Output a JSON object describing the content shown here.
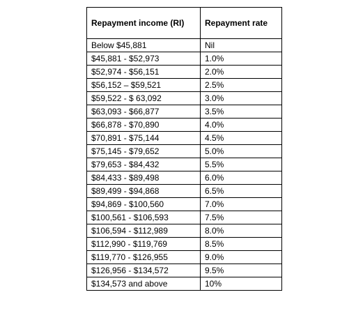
{
  "table": {
    "headers": [
      "Repayment income (RI)",
      "Repayment rate"
    ],
    "rows": [
      [
        "Below $45,881",
        "Nil"
      ],
      [
        "$45,881 - $52,973",
        "1.0%"
      ],
      [
        "$52,974 - $56,151",
        "2.0%"
      ],
      [
        "$56,152 – $59,521",
        "2.5%"
      ],
      [
        "$59,522 - $ 63,092",
        "3.0%"
      ],
      [
        "$63,093 - $66,877",
        "3.5%"
      ],
      [
        "$66,878 - $70,890",
        "4.0%"
      ],
      [
        "$70,891 - $75,144",
        "4.5%"
      ],
      [
        "$75,145 - $79,652",
        "5.0%"
      ],
      [
        "$79,653 - $84,432",
        "5.5%"
      ],
      [
        "$84,433 - $89,498",
        "6.0%"
      ],
      [
        "$89,499 - $94,868",
        "6.5%"
      ],
      [
        "$94,869 - $100,560",
        "7.0%"
      ],
      [
        "$100,561 - $106,593",
        "7.5%"
      ],
      [
        "$106,594 - $112,989",
        "8.0%"
      ],
      [
        "$112,990 - $119,769",
        "8.5%"
      ],
      [
        "$119,770 - $126,955",
        "9.0%"
      ],
      [
        "$126,956 - $134,572",
        "9.5%"
      ],
      [
        "$134,573 and above",
        "10%"
      ]
    ]
  }
}
